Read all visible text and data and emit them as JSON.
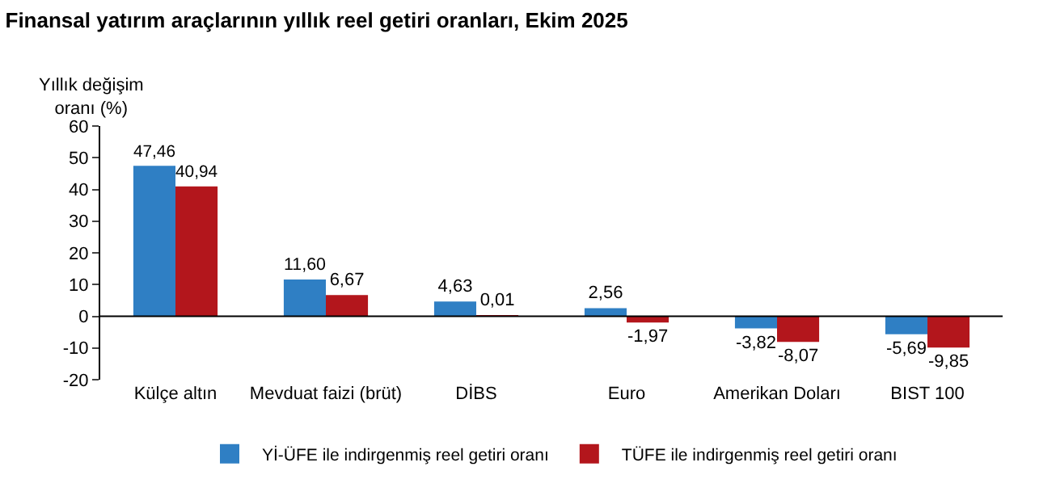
{
  "chart_data": {
    "type": "bar",
    "title": "Finansal yatırım araçlarının yıllık reel getiri oranları, Ekim 2025",
    "ylabel": "Yıllık değişim\noranı (%)",
    "categories": [
      "Külçe altın",
      "Mevduat faizi (brüt)",
      "DİBS",
      "Euro",
      "Amerikan Doları",
      "BIST 100"
    ],
    "series": [
      {
        "name": "Yİ-ÜFE ile indirgenmiş reel getiri oranı",
        "color": "#2f7fc4",
        "values": [
          47.46,
          11.6,
          4.63,
          2.56,
          -3.82,
          -5.69
        ],
        "value_labels": [
          "47,46",
          "11,60",
          "4,63",
          "2,56",
          "-3,82",
          "-5,69"
        ]
      },
      {
        "name": "TÜFE ile indirgenmiş reel getiri oranı",
        "color": "#b3161c",
        "values": [
          40.94,
          6.67,
          0.01,
          -1.97,
          -8.07,
          -9.85
        ],
        "value_labels": [
          "40,94",
          "6,67",
          "0,01",
          "-1,97",
          "-8,07",
          "-9,85"
        ]
      }
    ],
    "ylim": [
      -20,
      60
    ],
    "yticks": [
      -20,
      -10,
      0,
      10,
      20,
      30,
      40,
      50,
      60
    ],
    "legend": "bottom"
  }
}
